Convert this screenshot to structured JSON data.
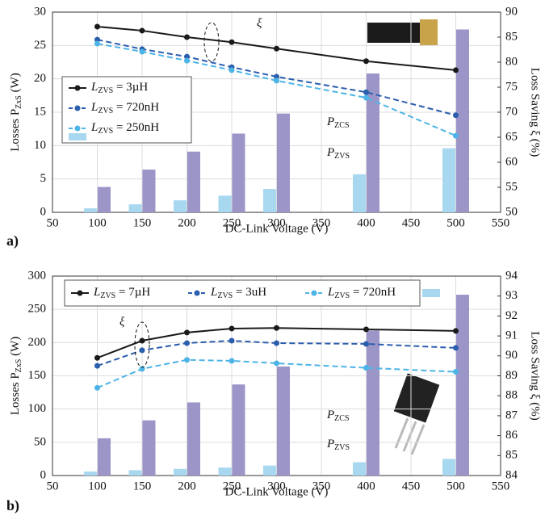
{
  "chart_data": [
    {
      "type": "combo",
      "panel_label": "a)",
      "xlabel": "DC-Link Voltage (V)",
      "ylabel": {
        "text": "Losses P",
        "sub": "ZxS",
        "unit": " (W)"
      },
      "y2label": "Loss Saving ξ (%)",
      "x": [
        100,
        150,
        200,
        250,
        300,
        400,
        500
      ],
      "xlim": [
        50,
        550
      ],
      "xticks": [
        50,
        100,
        150,
        200,
        250,
        300,
        350,
        400,
        450,
        500,
        550
      ],
      "ylim": [
        0,
        30
      ],
      "yticks": [
        0,
        5,
        10,
        15,
        20,
        25,
        30
      ],
      "y2lim": [
        50,
        90
      ],
      "y2ticks": [
        50,
        55,
        60,
        65,
        70,
        75,
        80,
        85,
        90
      ],
      "grid": true,
      "legend": "upper left",
      "legend_prefix": {
        "symbol": "L",
        "sub": "ZVS",
        "eq": " = "
      },
      "series": [
        {
          "type": "bar",
          "color": "#a8d8f0",
          "values": [
            0.6,
            1.2,
            1.8,
            2.5,
            3.5,
            5.7,
            9.6
          ]
        },
        {
          "type": "bar",
          "color": "#9b95c8",
          "values": [
            3.8,
            6.4,
            9.1,
            11.8,
            14.8,
            20.8,
            27.4
          ]
        },
        {
          "type": "line",
          "name": "3µH",
          "color": "#1a1a1a",
          "linestyle": "solid",
          "axis": "y2",
          "values": [
            87.1,
            86.3,
            85.0,
            84.0,
            82.7,
            80.2,
            78.4
          ]
        },
        {
          "type": "line",
          "name": "720nH",
          "color": "#2c5eae",
          "linestyle": "dashed",
          "axis": "y2",
          "values": [
            84.5,
            82.6,
            81.1,
            79.0,
            77.1,
            74.0,
            69.4
          ]
        },
        {
          "type": "line",
          "name": "250nH",
          "color": "#4cb4e6",
          "linestyle": "dashed",
          "axis": "y2",
          "values": [
            83.7,
            82.1,
            80.3,
            78.4,
            76.3,
            72.9,
            65.3
          ]
        }
      ],
      "annotations": [
        {
          "text": "ξ"
        },
        {
          "text": "P",
          "sub": "ZCS"
        },
        {
          "text": "P",
          "sub": "ZVS"
        }
      ]
    },
    {
      "type": "combo",
      "panel_label": "b)",
      "xlabel": "DC-Link Voltage (V)",
      "ylabel": {
        "text": "Losses P",
        "sub": "ZxS",
        "unit": " (W)"
      },
      "y2label": "Loss Saving ξ (%)",
      "x": [
        100,
        150,
        200,
        250,
        300,
        400,
        500
      ],
      "xlim": [
        50,
        550
      ],
      "xticks": [
        50,
        100,
        150,
        200,
        250,
        300,
        350,
        400,
        450,
        500,
        550
      ],
      "ylim": [
        0,
        300
      ],
      "yticks": [
        0,
        50,
        100,
        150,
        200,
        250,
        300
      ],
      "y2lim": [
        84,
        94
      ],
      "y2ticks": [
        84,
        85,
        86,
        87,
        88,
        89,
        90,
        91,
        92,
        93,
        94
      ],
      "grid": true,
      "legend": "upper center",
      "legend_prefix": {
        "symbol": "L",
        "sub": "ZVS",
        "eq": " = "
      },
      "series": [
        {
          "type": "bar",
          "color": "#a8d8f0",
          "values": [
            6,
            8,
            10,
            12,
            15,
            20,
            25
          ]
        },
        {
          "type": "bar",
          "color": "#9b95c8",
          "values": [
            56,
            83,
            110,
            137,
            164,
            218,
            272
          ]
        },
        {
          "type": "line",
          "name": "7µH",
          "color": "#1a1a1a",
          "linestyle": "solid",
          "axis": "y2",
          "values": [
            89.9,
            90.76,
            91.17,
            91.37,
            91.4,
            91.33,
            91.25
          ]
        },
        {
          "type": "line",
          "name": "3uH",
          "color": "#2c5eae",
          "linestyle": "dashed",
          "axis": "y2",
          "values": [
            89.5,
            90.28,
            90.64,
            90.76,
            90.64,
            90.6,
            90.4
          ]
        },
        {
          "type": "line",
          "name": "720nH",
          "color": "#4cb4e6",
          "linestyle": "dashed",
          "axis": "y2",
          "values": [
            88.4,
            89.35,
            89.8,
            89.75,
            89.63,
            89.4,
            89.2
          ]
        }
      ],
      "annotations": [
        {
          "text": "ξ"
        },
        {
          "text": "P",
          "sub": "ZCS"
        },
        {
          "text": "P",
          "sub": "ZVS"
        }
      ]
    }
  ]
}
